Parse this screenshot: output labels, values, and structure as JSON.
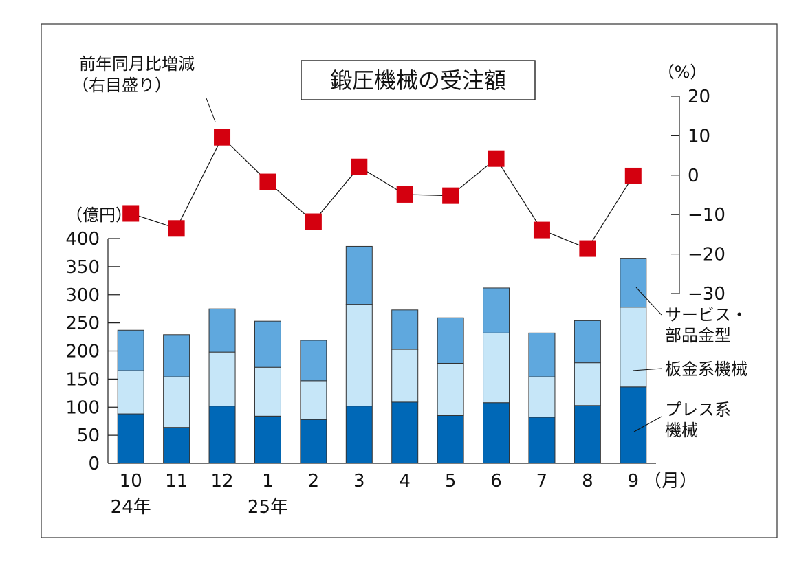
{
  "chart_data": {
    "type": "bar",
    "title": "鍛圧機械の受注額",
    "left_axis_unit": "（億円）",
    "right_axis_unit": "（%）",
    "month_unit": "（月）",
    "categories": [
      "10",
      "11",
      "12",
      "1",
      "2",
      "3",
      "4",
      "5",
      "6",
      "7",
      "8",
      "9"
    ],
    "year_labels": [
      {
        "category_index": 0,
        "label": "24年"
      },
      {
        "category_index": 3,
        "label": "25年"
      }
    ],
    "ylim": [
      0,
      400
    ],
    "yticks": [
      0,
      50,
      100,
      150,
      200,
      250,
      300,
      350,
      400
    ],
    "y2lim": [
      -30,
      20
    ],
    "y2ticks": [
      20,
      10,
      0,
      -10,
      -20,
      -30
    ],
    "y2tick_labels": [
      "20",
      "10",
      "0",
      "−10",
      "−20",
      "−30"
    ],
    "series": [
      {
        "name": "プレス系機械",
        "label_lines": [
          "プレス系",
          "機械"
        ],
        "color": "#0068b7",
        "values": [
          88,
          64,
          102,
          84,
          78,
          102,
          109,
          85,
          108,
          82,
          103,
          136
        ]
      },
      {
        "name": "板金系機械",
        "label_lines": [
          "板金系機械"
        ],
        "color": "#c6e6f8",
        "values": [
          77,
          90,
          96,
          87,
          69,
          181,
          94,
          93,
          124,
          72,
          76,
          142
        ]
      },
      {
        "name": "サービス・部品金型",
        "label_lines": [
          "サービス・",
          "部品金型"
        ],
        "color": "#5fa8de",
        "values": [
          72,
          75,
          77,
          82,
          72,
          103,
          70,
          81,
          80,
          78,
          75,
          87
        ]
      }
    ],
    "line_series": {
      "name": "前年同月比増減",
      "label_lines": [
        "前年同月比増減",
        "（右目盛り）"
      ],
      "axis": "right",
      "color": "#d4000f",
      "values": [
        -9.7,
        -13.5,
        9.6,
        -1.7,
        -11.8,
        2.1,
        -4.9,
        -5.2,
        4.2,
        -13.9,
        -18.6,
        -0.2
      ]
    }
  }
}
